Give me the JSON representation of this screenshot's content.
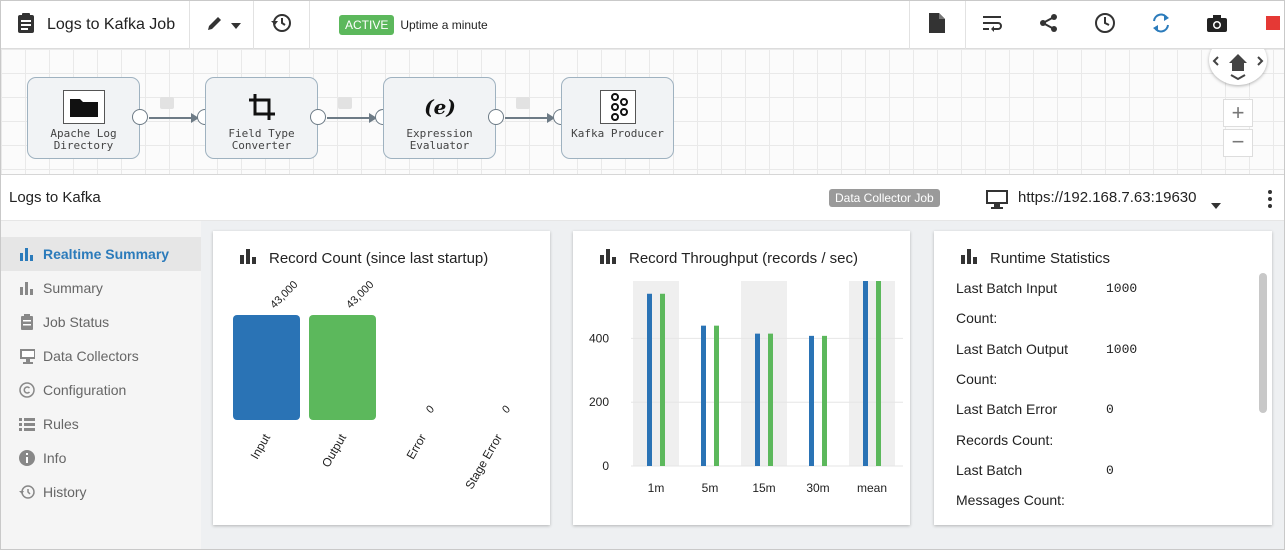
{
  "job": {
    "title": "Logs to Kafka Job",
    "status": "ACTIVE",
    "uptime": "Uptime a minute"
  },
  "pipeline": {
    "stages": [
      {
        "label1": "Apache Log",
        "label2": "Directory",
        "icon": "folder-icon"
      },
      {
        "label1": "Field Type",
        "label2": "Converter",
        "icon": "crop-icon"
      },
      {
        "label1": "Expression",
        "label2": "Evaluator",
        "icon": "expression-icon"
      },
      {
        "label1": "Kafka Producer",
        "label2": "",
        "icon": "kafka-icon"
      }
    ]
  },
  "panel": {
    "title": "Logs to Kafka",
    "badge": "Data Collector Job",
    "url": "https://192.168.7.63:19630"
  },
  "sidebar": {
    "items": [
      {
        "label": "Realtime Summary",
        "icon": "bar-chart-icon"
      },
      {
        "label": "Summary",
        "icon": "bar-chart-icon"
      },
      {
        "label": "Job Status",
        "icon": "clipboard-icon"
      },
      {
        "label": "Data Collectors",
        "icon": "monitor-icon"
      },
      {
        "label": "Configuration",
        "icon": "copyright-icon"
      },
      {
        "label": "Rules",
        "icon": "list-icon"
      },
      {
        "label": "Info",
        "icon": "info-icon"
      },
      {
        "label": "History",
        "icon": "history-icon"
      }
    ]
  },
  "record_count": {
    "title": "Record Count (since last startup)"
  },
  "throughput": {
    "title": "Record Throughput (records / sec)"
  },
  "runtime": {
    "title": "Runtime Statistics",
    "rows": [
      {
        "l1": "Last Batch Input",
        "l2": "Count:",
        "value": "1000"
      },
      {
        "l1": "Last Batch Output",
        "l2": "Count:",
        "value": "1000"
      },
      {
        "l1": "Last Batch Error",
        "l2": "Records Count:",
        "value": "0"
      },
      {
        "l1": "Last Batch",
        "l2": "Messages Count:",
        "value": "0"
      }
    ]
  },
  "colors": {
    "blue": "#2a73b5",
    "green": "#5cb85c",
    "active": "#2b7bbb"
  },
  "chart_data": [
    {
      "type": "bar",
      "title": "Record Count (since last startup)",
      "categories": [
        "Input",
        "Output",
        "Error",
        "Stage Error"
      ],
      "values": [
        43000,
        43000,
        0,
        0
      ],
      "value_labels": [
        "43,000",
        "43,000",
        "0",
        "0"
      ]
    },
    {
      "type": "bar",
      "title": "Record Throughput (records / sec)",
      "categories": [
        "1m",
        "5m",
        "15m",
        "30m",
        "mean"
      ],
      "yticks": [
        0,
        200,
        400
      ],
      "ylim": [
        0,
        580
      ],
      "series": [
        {
          "values": [
            540,
            440,
            415,
            408,
            580
          ]
        },
        {
          "values": [
            540,
            440,
            415,
            408,
            580
          ]
        }
      ]
    }
  ]
}
